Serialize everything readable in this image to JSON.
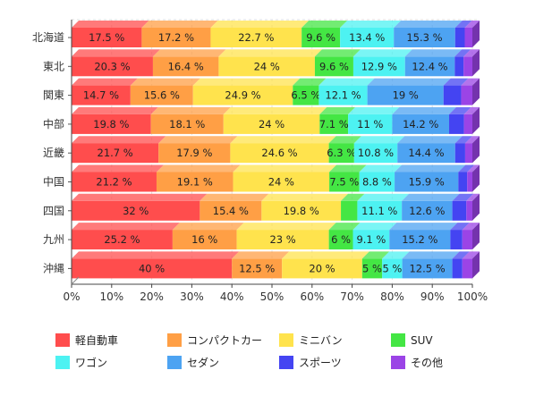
{
  "chart_data": {
    "type": "bar",
    "orientation": "horizontal",
    "stacked": "percent",
    "categories": [
      "北海道",
      "東北",
      "関東",
      "中部",
      "近畿",
      "中国",
      "四国",
      "九州",
      "沖縄"
    ],
    "series": [
      {
        "name": "軽自動車",
        "color": "#ff4d4d",
        "values": [
          17.5,
          20.3,
          14.7,
          19.8,
          21.7,
          21.2,
          32,
          25.2,
          40
        ]
      },
      {
        "name": "コンパクトカー",
        "color": "#ff9f45",
        "values": [
          17.2,
          16.4,
          15.6,
          18.1,
          17.9,
          19.1,
          15.4,
          16,
          12.5
        ]
      },
      {
        "name": "ミニバン",
        "color": "#ffe34d",
        "values": [
          22.7,
          24,
          24.9,
          24,
          24.6,
          24,
          19.8,
          23,
          20
        ]
      },
      {
        "name": "SUV",
        "color": "#44e644",
        "values": [
          9.6,
          9.6,
          6.5,
          7.1,
          6.3,
          7.5,
          4.1,
          6,
          5
        ]
      },
      {
        "name": "ワゴン",
        "color": "#4df2f2",
        "values": [
          13.4,
          12.9,
          12.1,
          11,
          10.8,
          8.8,
          11.1,
          9.1,
          5
        ]
      },
      {
        "name": "セダン",
        "color": "#4da3f2",
        "values": [
          15.3,
          12.4,
          19,
          14.2,
          14.4,
          15.9,
          12.6,
          15.2,
          12.5
        ]
      },
      {
        "name": "スポーツ",
        "color": "#4444f2",
        "values": [
          2.4,
          2.2,
          4.4,
          3.7,
          2.5,
          2.2,
          3.5,
          3,
          2.5
        ]
      },
      {
        "name": "その他",
        "color": "#9b44e6",
        "values": [
          1.9,
          2.2,
          2.8,
          2.1,
          1.8,
          1.3,
          1.5,
          2.5,
          2.5
        ]
      }
    ],
    "xaxis": {
      "min": 0,
      "max": 100,
      "ticks": [
        "0%",
        "10%",
        "20%",
        "30%",
        "40%",
        "50%",
        "60%",
        "70%",
        "80%",
        "90%",
        "100%"
      ]
    },
    "label_suffix": " %",
    "label_min_percent": 4.5,
    "grid": true,
    "legend_position": "bottom"
  }
}
